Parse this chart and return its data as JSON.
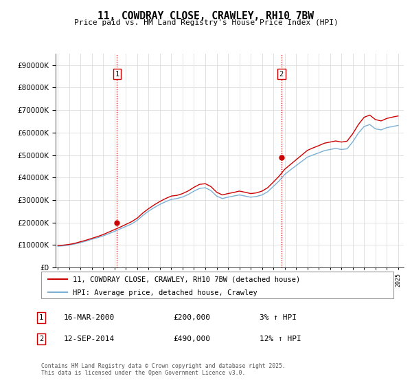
{
  "title": "11, COWDRAY CLOSE, CRAWLEY, RH10 7BW",
  "subtitle": "Price paid vs. HM Land Registry's House Price Index (HPI)",
  "legend_line1": "11, COWDRAY CLOSE, CRAWLEY, RH10 7BW (detached house)",
  "legend_line2": "HPI: Average price, detached house, Crawley",
  "annotation1_date": "16-MAR-2000",
  "annotation1_price": "£200,000",
  "annotation1_hpi": "3% ↑ HPI",
  "annotation2_date": "12-SEP-2014",
  "annotation2_price": "£490,000",
  "annotation2_hpi": "12% ↑ HPI",
  "footer": "Contains HM Land Registry data © Crown copyright and database right 2025.\nThis data is licensed under the Open Government Licence v3.0.",
  "red_color": "#cc0000",
  "blue_color": "#7bafd4",
  "background_color": "#ffffff",
  "grid_color": "#dddddd",
  "ylim": [
    0,
    950000
  ],
  "yticks": [
    0,
    100000,
    200000,
    300000,
    400000,
    500000,
    600000,
    700000,
    800000,
    900000
  ],
  "xlim_start": 1994.8,
  "xlim_end": 2025.5,
  "sale1_x": 2000.21,
  "sale1_y": 200000,
  "sale2_x": 2014.71,
  "sale2_y": 490000,
  "hpi_years": [
    1995.0,
    1995.5,
    1996.0,
    1996.5,
    1997.0,
    1997.5,
    1998.0,
    1998.5,
    1999.0,
    1999.5,
    2000.0,
    2000.5,
    2001.0,
    2001.5,
    2002.0,
    2002.5,
    2003.0,
    2003.5,
    2004.0,
    2004.5,
    2005.0,
    2005.5,
    2006.0,
    2006.5,
    2007.0,
    2007.5,
    2008.0,
    2008.5,
    2009.0,
    2009.5,
    2010.0,
    2010.5,
    2011.0,
    2011.5,
    2012.0,
    2012.5,
    2013.0,
    2013.5,
    2014.0,
    2014.5,
    2015.0,
    2015.5,
    2016.0,
    2016.5,
    2017.0,
    2017.5,
    2018.0,
    2018.5,
    2019.0,
    2019.5,
    2020.0,
    2020.5,
    2021.0,
    2021.5,
    2022.0,
    2022.5,
    2023.0,
    2023.5,
    2024.0,
    2024.5,
    2025.0
  ],
  "hpi_values": [
    95000,
    97000,
    100000,
    105000,
    111000,
    118000,
    126000,
    133000,
    141000,
    151000,
    161000,
    172000,
    183000,
    194000,
    210000,
    232000,
    251000,
    267000,
    281000,
    293000,
    303000,
    307000,
    314000,
    325000,
    340000,
    352000,
    355000,
    342000,
    318000,
    307000,
    313000,
    318000,
    323000,
    318000,
    313000,
    316000,
    323000,
    337000,
    361000,
    385000,
    414000,
    434000,
    453000,
    472000,
    491000,
    501000,
    510000,
    520000,
    525000,
    530000,
    525000,
    528000,
    559000,
    598000,
    627000,
    636000,
    617000,
    612000,
    622000,
    627000,
    632000
  ],
  "red_values": [
    98000,
    100000,
    103000,
    108000,
    115000,
    122000,
    130000,
    138000,
    147000,
    158000,
    169000,
    180000,
    192000,
    204000,
    220000,
    243000,
    262000,
    279000,
    294000,
    307000,
    318000,
    321000,
    329000,
    341000,
    357000,
    370000,
    373000,
    360000,
    335000,
    323000,
    329000,
    334000,
    340000,
    335000,
    329000,
    332000,
    340000,
    355000,
    380000,
    406000,
    437000,
    458000,
    479000,
    500000,
    521000,
    532000,
    542000,
    553000,
    558000,
    563000,
    558000,
    562000,
    595000,
    636000,
    668000,
    678000,
    658000,
    652000,
    663000,
    669000,
    674000
  ]
}
